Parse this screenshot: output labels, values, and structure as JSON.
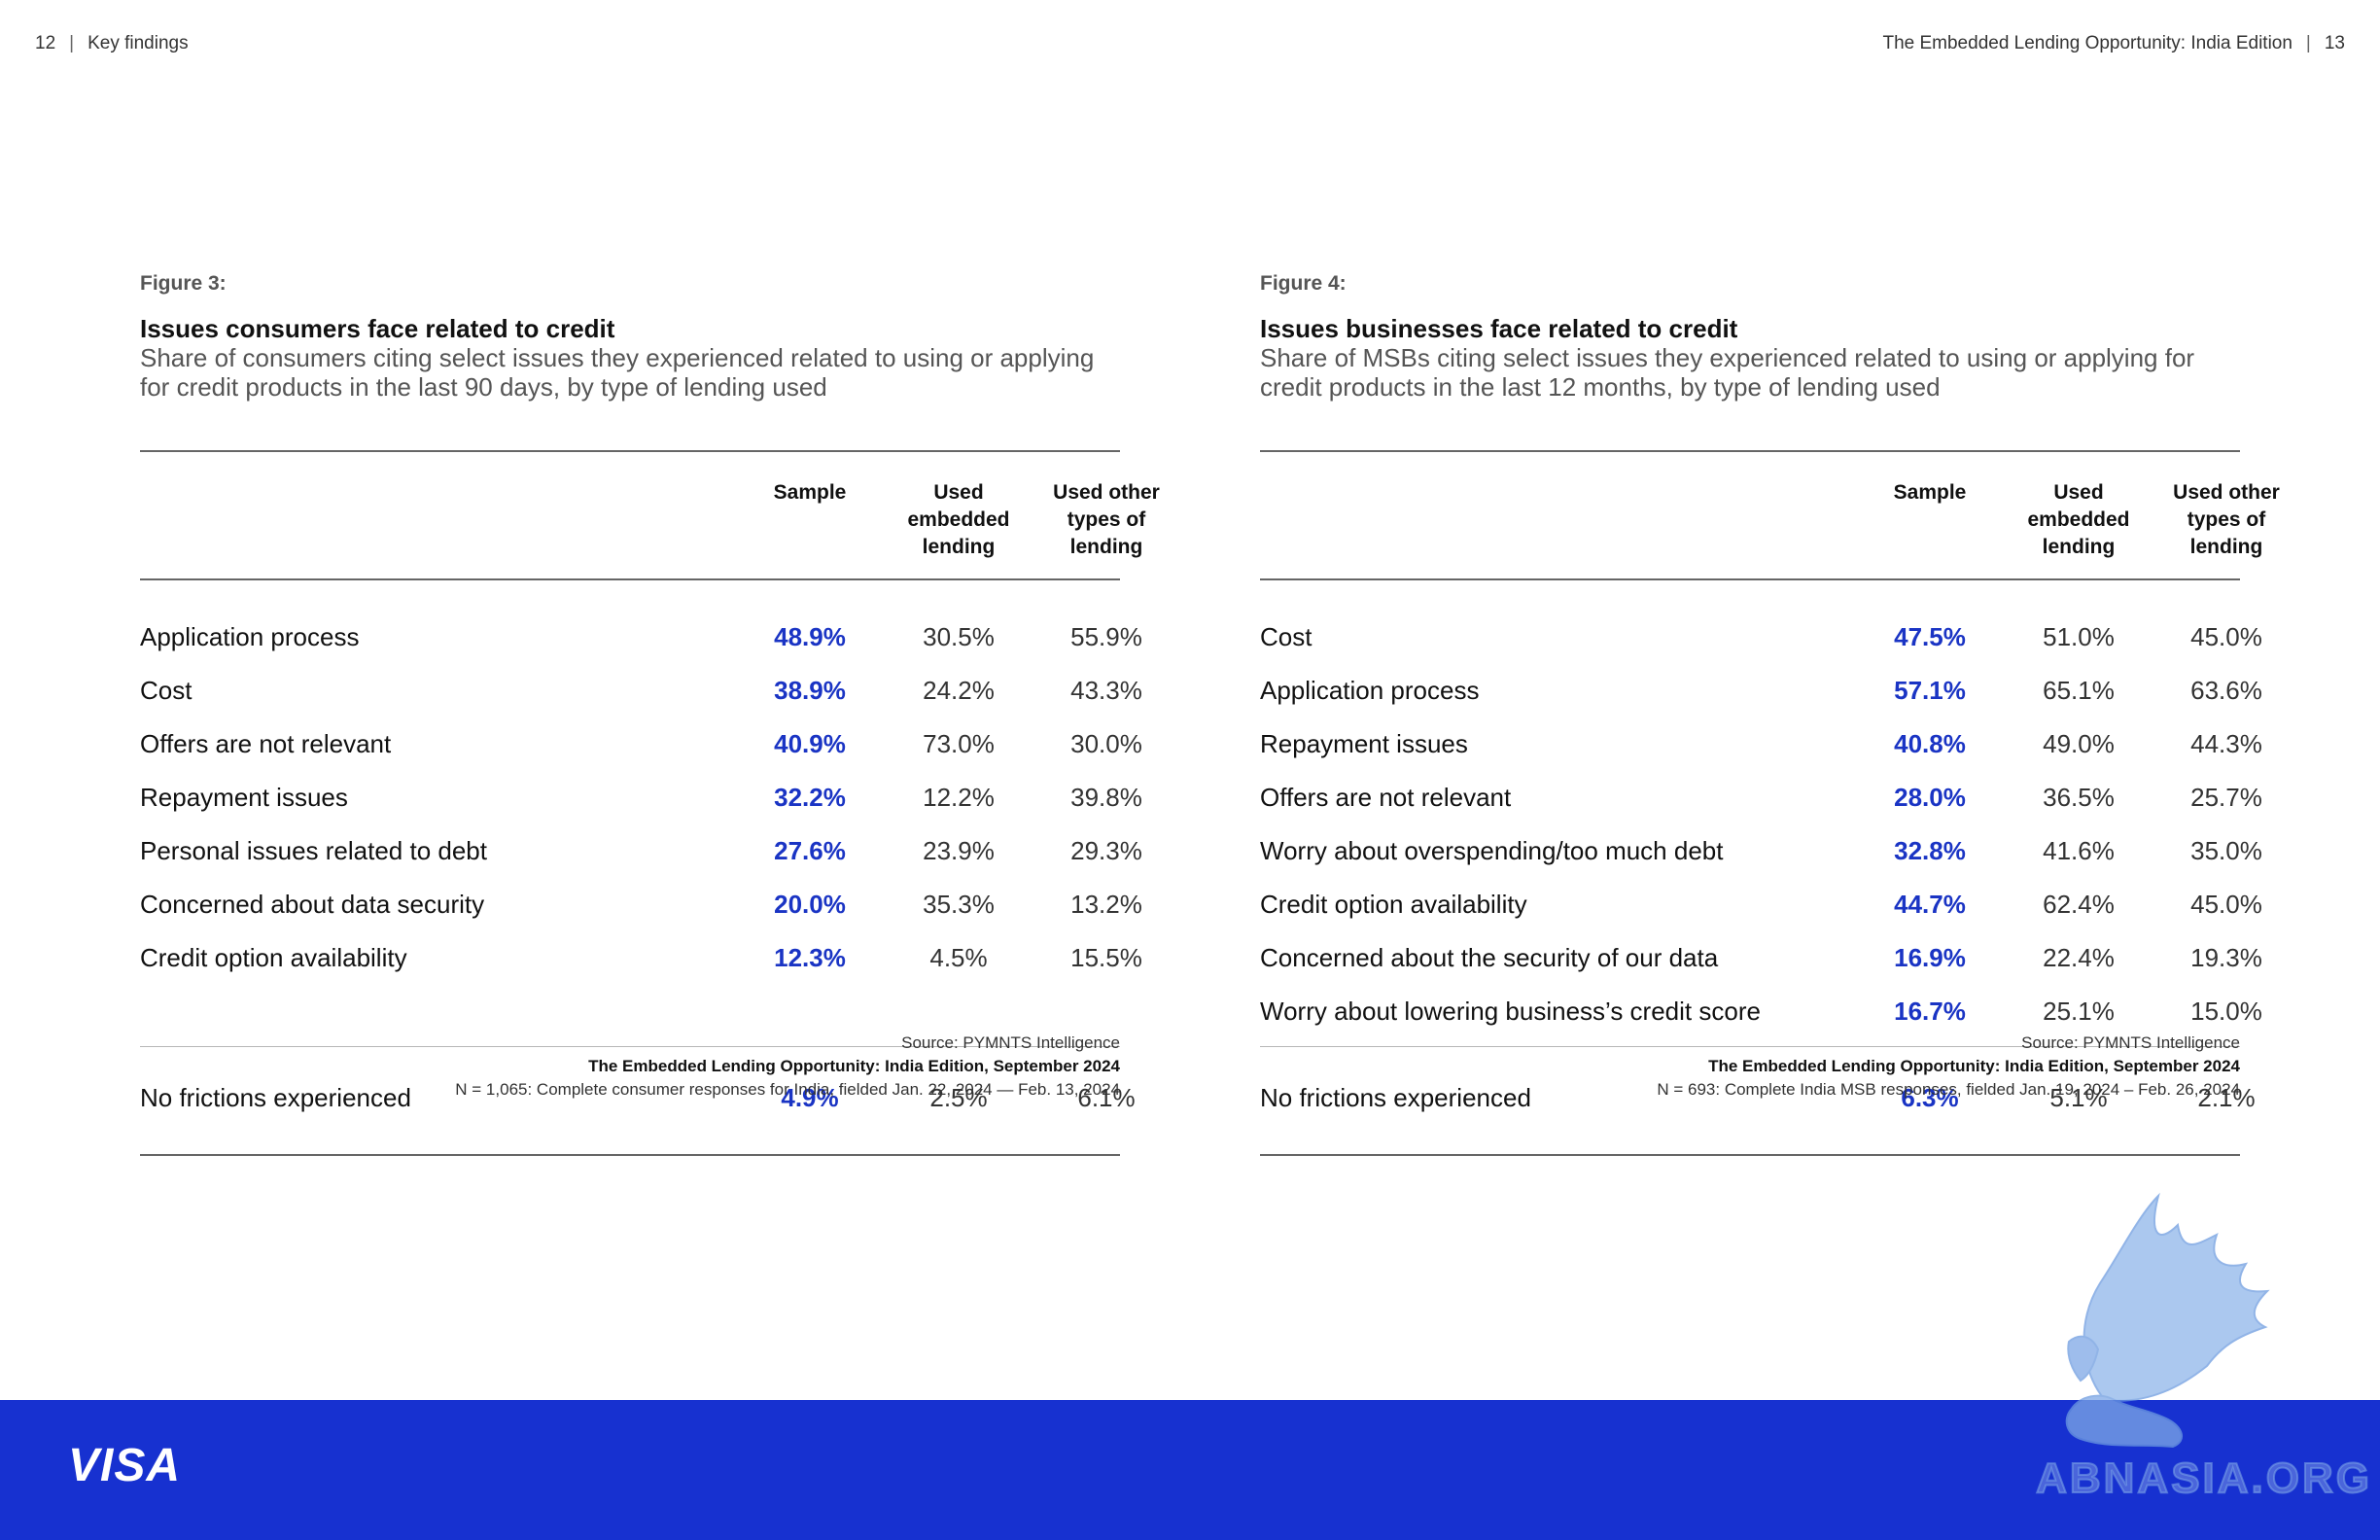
{
  "header": {
    "left_page": "12",
    "left_section": "Key findings",
    "right_title": "The Embedded Lending Opportunity: India Edition",
    "right_page": "13"
  },
  "figures": [
    {
      "label": "Figure 3:",
      "title": "Issues consumers face related to credit",
      "subtitle": "Share of consumers citing select issues they experienced related to using or applying for credit products in the last 90 days, by type of lending used",
      "columns": [
        "Sample",
        "Used embedded lending",
        "Used other types of lending"
      ],
      "rows": [
        {
          "label": "Application process",
          "values": [
            "48.9%",
            "30.5%",
            "55.9%"
          ]
        },
        {
          "label": "Cost",
          "values": [
            "38.9%",
            "24.2%",
            "43.3%"
          ]
        },
        {
          "label": "Offers are not relevant",
          "values": [
            "40.9%",
            "73.0%",
            "30.0%"
          ]
        },
        {
          "label": "Repayment issues",
          "values": [
            "32.2%",
            "12.2%",
            "39.8%"
          ]
        },
        {
          "label": "Personal issues related to debt",
          "values": [
            "27.6%",
            "23.9%",
            "29.3%"
          ]
        },
        {
          "label": "Concerned about data security",
          "values": [
            "20.0%",
            "35.3%",
            "13.2%"
          ]
        },
        {
          "label": "Credit option availability",
          "values": [
            "12.3%",
            "4.5%",
            "15.5%"
          ]
        }
      ],
      "summary": {
        "label": "No frictions experienced",
        "values": [
          "4.9%",
          "2.5%",
          "6.1%"
        ]
      },
      "source": "Source: PYMNTS Intelligence",
      "source_title": "The Embedded Lending Opportunity: India Edition, September 2024",
      "source_note": "N = 1,065: Complete consumer responses for India, fielded Jan. 22, 2024 — Feb. 13, 2024"
    },
    {
      "label": "Figure 4:",
      "title": "Issues businesses face related to credit",
      "subtitle": "Share of MSBs citing select issues they experienced related to using or applying for credit products in the last 12 months, by type of lending used",
      "columns": [
        "Sample",
        "Used embedded lending",
        "Used other types of lending"
      ],
      "rows": [
        {
          "label": "Cost",
          "values": [
            "47.5%",
            "51.0%",
            "45.0%"
          ]
        },
        {
          "label": "Application process",
          "values": [
            "57.1%",
            "65.1%",
            "63.6%"
          ]
        },
        {
          "label": "Repayment issues",
          "values": [
            "40.8%",
            "49.0%",
            "44.3%"
          ]
        },
        {
          "label": "Offers are not relevant",
          "values": [
            "28.0%",
            "36.5%",
            "25.7%"
          ]
        },
        {
          "label": "Worry about overspending/too much debt",
          "values": [
            "32.8%",
            "41.6%",
            "35.0%"
          ]
        },
        {
          "label": "Credit option availability",
          "values": [
            "44.7%",
            "62.4%",
            "45.0%"
          ]
        },
        {
          "label": "Concerned about the security of our data",
          "values": [
            "16.9%",
            "22.4%",
            "19.3%"
          ]
        },
        {
          "label": "Worry about lowering business’s credit score",
          "values": [
            "16.7%",
            "25.1%",
            "15.0%"
          ]
        }
      ],
      "summary": {
        "label": "No frictions experienced",
        "values": [
          "6.3%",
          "5.1%",
          "2.1%"
        ]
      },
      "source": "Source: PYMNTS Intelligence",
      "source_title": "The Embedded Lending Opportunity: India Edition, September 2024",
      "source_note": "N = 693: Complete India MSB responses, fielded Jan. 19, 2024 – Feb. 26, 2024"
    }
  ],
  "footer": {
    "brand": "VISA",
    "watermark": "ABNASIA.ORG"
  },
  "colors": {
    "accent_blue": "#1a34c4",
    "footer_blue": "#1731d0"
  }
}
